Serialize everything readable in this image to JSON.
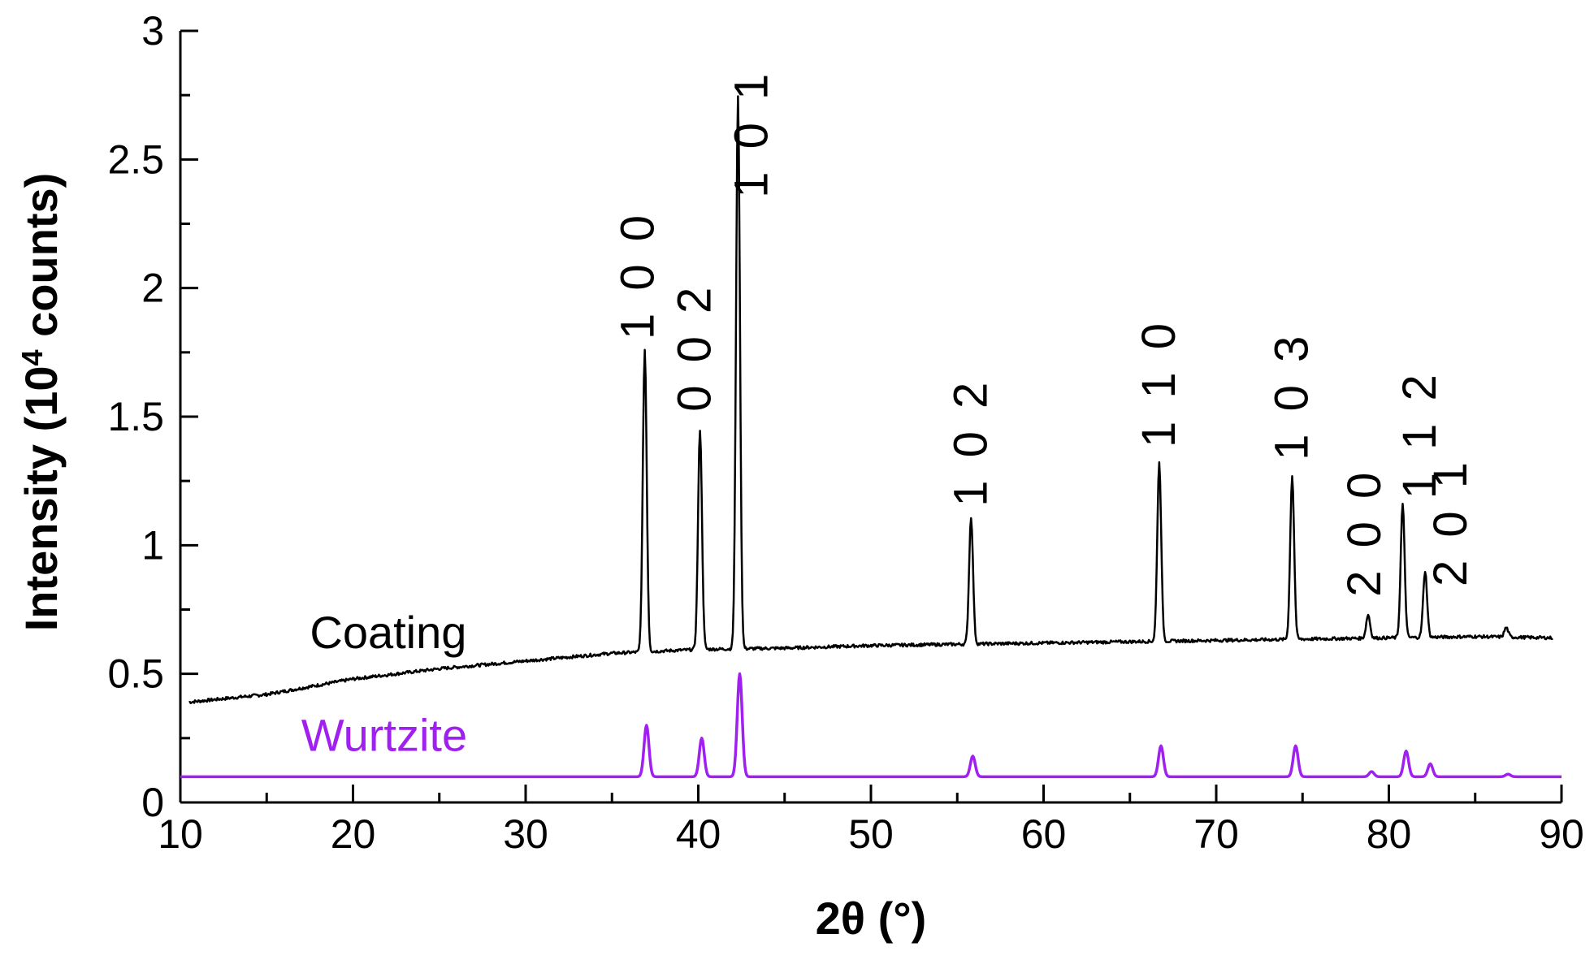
{
  "chart_data": {
    "type": "line",
    "title": "",
    "xlabel": "2θ (°)",
    "ylabel_main": "Intensity (10",
    "ylabel_sup": "4",
    "ylabel_tail": " counts)",
    "xlim": [
      10,
      90
    ],
    "ylim": [
      0,
      3
    ],
    "x_ticks": [
      10,
      20,
      30,
      40,
      50,
      60,
      70,
      80,
      90
    ],
    "x_tick_labels": [
      "10",
      "20",
      "30",
      "40",
      "50",
      "60",
      "70",
      "80",
      "90"
    ],
    "y_ticks": [
      0,
      0.5,
      1,
      1.5,
      2,
      2.5,
      3
    ],
    "y_tick_labels": [
      "0",
      "0.5",
      "1",
      "1.5",
      "2",
      "2.5",
      "3"
    ],
    "grid": false,
    "series": [
      {
        "name": "Coating",
        "color": "#000000",
        "baseline": [
          [
            10.5,
            0.39
          ],
          [
            15,
            0.42
          ],
          [
            20,
            0.48
          ],
          [
            25,
            0.52
          ],
          [
            30,
            0.55
          ],
          [
            35,
            0.58
          ],
          [
            40,
            0.595
          ],
          [
            45,
            0.6
          ],
          [
            50,
            0.61
          ],
          [
            55,
            0.615
          ],
          [
            60,
            0.62
          ],
          [
            65,
            0.625
          ],
          [
            70,
            0.63
          ],
          [
            75,
            0.635
          ],
          [
            80,
            0.64
          ],
          [
            85,
            0.645
          ],
          [
            89.5,
            0.64
          ]
        ],
        "peaks": [
          {
            "x": 36.9,
            "y": 1.76
          },
          {
            "x": 40.1,
            "y": 1.45
          },
          {
            "x": 42.3,
            "y": 2.74
          },
          {
            "x": 55.8,
            "y": 1.11
          },
          {
            "x": 66.7,
            "y": 1.32
          },
          {
            "x": 74.4,
            "y": 1.27
          },
          {
            "x": 78.8,
            "y": 0.73
          },
          {
            "x": 80.8,
            "y": 1.16
          },
          {
            "x": 82.1,
            "y": 0.9
          },
          {
            "x": 86.8,
            "y": 0.68
          }
        ]
      },
      {
        "name": "Wurtzite",
        "color": "#a020f0",
        "baseline_y": 0.1,
        "peaks": [
          {
            "x": 37.0,
            "y": 0.3
          },
          {
            "x": 40.2,
            "y": 0.25
          },
          {
            "x": 42.4,
            "y": 0.5
          },
          {
            "x": 55.9,
            "y": 0.18
          },
          {
            "x": 66.8,
            "y": 0.22
          },
          {
            "x": 74.6,
            "y": 0.22
          },
          {
            "x": 79.0,
            "y": 0.12
          },
          {
            "x": 81.0,
            "y": 0.2
          },
          {
            "x": 82.4,
            "y": 0.15
          },
          {
            "x": 86.9,
            "y": 0.11
          }
        ]
      }
    ],
    "series_labels": [
      {
        "text": "Coating",
        "x": 17.5,
        "y": 0.6,
        "color": "#000000"
      },
      {
        "text": "Wurtzite",
        "x": 17.0,
        "y": 0.2,
        "color": "#a020f0"
      }
    ],
    "peak_labels": [
      {
        "text": "1 0 0",
        "x": 37.4,
        "y": 1.8
      },
      {
        "text": "0 0 2",
        "x": 40.7,
        "y": 1.52
      },
      {
        "text": "1 0 1",
        "x": 44.0,
        "y": 2.35
      },
      {
        "text": "1 0 2",
        "x": 56.7,
        "y": 1.15
      },
      {
        "text": "1 1 0",
        "x": 67.6,
        "y": 1.38
      },
      {
        "text": "1 0 3",
        "x": 75.3,
        "y": 1.33
      },
      {
        "text": "2 0 0",
        "x": 79.5,
        "y": 0.8
      },
      {
        "text": "1 1 2",
        "x": 82.7,
        "y": 1.18
      },
      {
        "text": "2 0 1",
        "x": 84.5,
        "y": 0.84
      }
    ]
  }
}
